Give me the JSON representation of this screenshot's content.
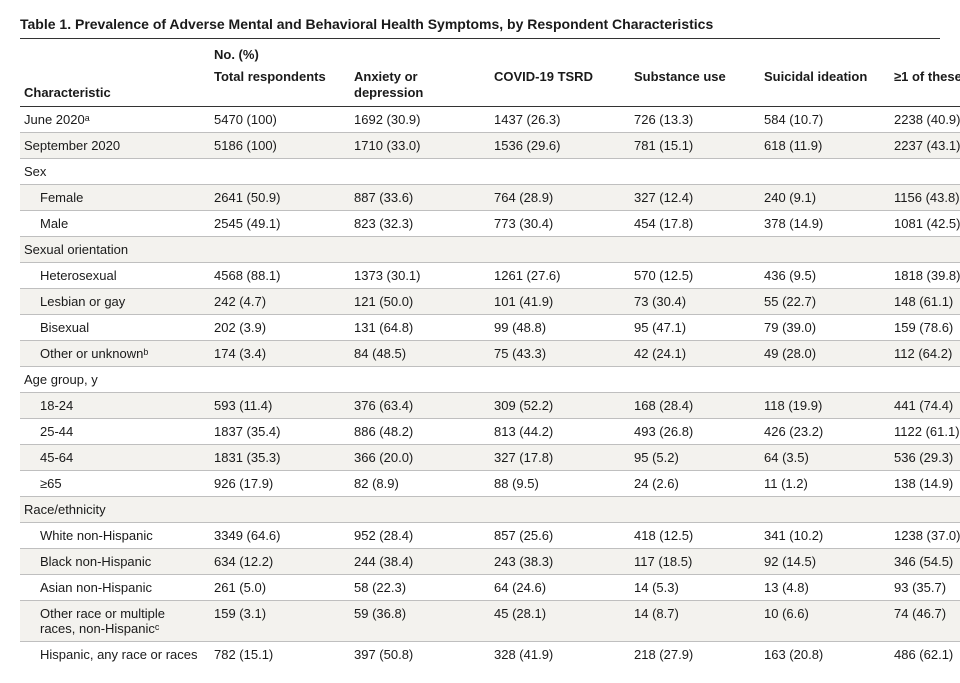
{
  "title": "Table 1. Prevalence of Adverse Mental and Behavioral Health Symptoms, by Respondent Characteristics",
  "superheader": "No. (%)",
  "columns": [
    "Characteristic",
    "Total respondents",
    "Anxiety or depression",
    "COVID-19 TSRD",
    "Substance use",
    "Suicidal ideation",
    "≥1 of these"
  ],
  "colors": {
    "text": "#1a1a1a",
    "rule": "#333333",
    "row_rule": "#bfbfbf",
    "zebra": "#f3f2ee",
    "background": "#ffffff"
  },
  "typography": {
    "body_fontsize": 13,
    "title_fontsize": 14,
    "font_family": "Arial"
  },
  "rows": [
    {
      "label": "June 2020ᵃ",
      "vals": [
        "5470 (100)",
        "1692 (30.9)",
        "1437 (26.3)",
        "726 (13.3)",
        "584 (10.7)",
        "2238 (40.9)"
      ],
      "indent": 0,
      "section": false,
      "zebra": false
    },
    {
      "label": "September 2020",
      "vals": [
        "5186 (100)",
        "1710 (33.0)",
        "1536 (29.6)",
        "781 (15.1)",
        "618 (11.9)",
        "2237 (43.1)"
      ],
      "indent": 0,
      "section": false,
      "zebra": true
    },
    {
      "label": "Sex",
      "vals": [
        "",
        "",
        "",
        "",
        "",
        ""
      ],
      "indent": 0,
      "section": true,
      "zebra": false
    },
    {
      "label": "Female",
      "vals": [
        "2641 (50.9)",
        "887 (33.6)",
        "764 (28.9)",
        "327 (12.4)",
        "240 (9.1)",
        "1156 (43.8)"
      ],
      "indent": 1,
      "section": false,
      "zebra": true
    },
    {
      "label": "Male",
      "vals": [
        "2545 (49.1)",
        "823 (32.3)",
        "773 (30.4)",
        "454 (17.8)",
        "378 (14.9)",
        "1081 (42.5)"
      ],
      "indent": 1,
      "section": false,
      "zebra": false
    },
    {
      "label": "Sexual orientation",
      "vals": [
        "",
        "",
        "",
        "",
        "",
        ""
      ],
      "indent": 0,
      "section": true,
      "zebra": true
    },
    {
      "label": "Heterosexual",
      "vals": [
        "4568 (88.1)",
        "1373 (30.1)",
        "1261 (27.6)",
        "570 (12.5)",
        "436 (9.5)",
        "1818 (39.8)"
      ],
      "indent": 1,
      "section": false,
      "zebra": false
    },
    {
      "label": "Lesbian or gay",
      "vals": [
        "242 (4.7)",
        "121 (50.0)",
        "101 (41.9)",
        "73 (30.4)",
        "55 (22.7)",
        "148 (61.1)"
      ],
      "indent": 1,
      "section": false,
      "zebra": true
    },
    {
      "label": "Bisexual",
      "vals": [
        "202 (3.9)",
        "131 (64.8)",
        "99 (48.8)",
        "95 (47.1)",
        "79 (39.0)",
        "159 (78.6)"
      ],
      "indent": 1,
      "section": false,
      "zebra": false
    },
    {
      "label": "Other or unknownᵇ",
      "vals": [
        "174 (3.4)",
        "84 (48.5)",
        "75 (43.3)",
        "42 (24.1)",
        "49 (28.0)",
        "112 (64.2)"
      ],
      "indent": 1,
      "section": false,
      "zebra": true
    },
    {
      "label": "Age group, y",
      "vals": [
        "",
        "",
        "",
        "",
        "",
        ""
      ],
      "indent": 0,
      "section": true,
      "zebra": false
    },
    {
      "label": "18-24",
      "vals": [
        "593 (11.4)",
        "376 (63.4)",
        "309 (52.2)",
        "168 (28.4)",
        "118 (19.9)",
        "441 (74.4)"
      ],
      "indent": 1,
      "section": false,
      "zebra": true
    },
    {
      "label": "25-44",
      "vals": [
        "1837 (35.4)",
        "886 (48.2)",
        "813 (44.2)",
        "493 (26.8)",
        "426 (23.2)",
        "1122 (61.1)"
      ],
      "indent": 1,
      "section": false,
      "zebra": false
    },
    {
      "label": "45-64",
      "vals": [
        "1831 (35.3)",
        "366 (20.0)",
        "327 (17.8)",
        "95 (5.2)",
        "64 (3.5)",
        "536 (29.3)"
      ],
      "indent": 1,
      "section": false,
      "zebra": true
    },
    {
      "label": "≥65",
      "vals": [
        "926 (17.9)",
        "82 (8.9)",
        "88 (9.5)",
        "24 (2.6)",
        "11 (1.2)",
        "138 (14.9)"
      ],
      "indent": 1,
      "section": false,
      "zebra": false
    },
    {
      "label": "Race/ethnicity",
      "vals": [
        "",
        "",
        "",
        "",
        "",
        ""
      ],
      "indent": 0,
      "section": true,
      "zebra": true
    },
    {
      "label": "White non-Hispanic",
      "vals": [
        "3349 (64.6)",
        "952 (28.4)",
        "857 (25.6)",
        "418 (12.5)",
        "341 (10.2)",
        "1238 (37.0)"
      ],
      "indent": 1,
      "section": false,
      "zebra": false
    },
    {
      "label": "Black non-Hispanic",
      "vals": [
        "634 (12.2)",
        "244 (38.4)",
        "243 (38.3)",
        "117 (18.5)",
        "92 (14.5)",
        "346 (54.5)"
      ],
      "indent": 1,
      "section": false,
      "zebra": true
    },
    {
      "label": "Asian non-Hispanic",
      "vals": [
        "261 (5.0)",
        "58 (22.3)",
        "64 (24.6)",
        "14 (5.3)",
        "13 (4.8)",
        "93 (35.7)"
      ],
      "indent": 1,
      "section": false,
      "zebra": false
    },
    {
      "label": "Other race or multiple races, non-Hispanicᶜ",
      "vals": [
        "159 (3.1)",
        "59 (36.8)",
        "45 (28.1)",
        "14 (8.7)",
        "10 (6.6)",
        "74 (46.7)"
      ],
      "indent": 1,
      "section": false,
      "zebra": true
    },
    {
      "label": "Hispanic, any race or races",
      "vals": [
        "782 (15.1)",
        "397 (50.8)",
        "328 (41.9)",
        "218 (27.9)",
        "163 (20.8)",
        "486 (62.1)"
      ],
      "indent": 1,
      "section": false,
      "zebra": false
    }
  ]
}
